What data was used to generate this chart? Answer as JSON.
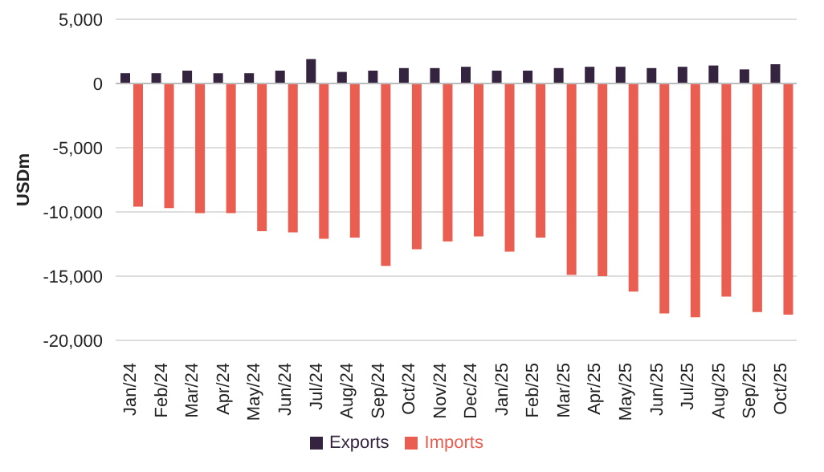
{
  "chart_data": {
    "type": "bar",
    "ylabel": "USDm",
    "categories": [
      "Jan/24",
      "Feb/24",
      "Mar/24",
      "Apr/24",
      "May/24",
      "Jun/24",
      "Jul/24",
      "Aug/24",
      "Sep/24",
      "Oct/24",
      "Nov/24",
      "Dec/24",
      "Jan/25",
      "Feb/25",
      "Mar/25",
      "Apr/25",
      "May/25",
      "Jun/25",
      "Jul/25",
      "Aug/25",
      "Sep/25",
      "Oct/25"
    ],
    "series": [
      {
        "name": "Exports",
        "color": "#35243f",
        "values": [
          800,
          800,
          1000,
          800,
          800,
          1000,
          1900,
          900,
          1000,
          1200,
          1200,
          1300,
          1000,
          1000,
          1200,
          1300,
          1300,
          1200,
          1300,
          1400,
          1100,
          1500
        ]
      },
      {
        "name": "Imports",
        "color": "#e95e50",
        "values": [
          -9600,
          -9700,
          -10100,
          -10100,
          -11500,
          -11600,
          -12100,
          -12000,
          -14200,
          -12900,
          -12300,
          -11900,
          -13100,
          -12000,
          -14900,
          -15000,
          -16200,
          -17900,
          -18200,
          -16600,
          -17800,
          -18000
        ]
      }
    ],
    "ylim": [
      -20000,
      5000
    ],
    "yticks": [
      {
        "value": -20000,
        "label": "-20,000"
      },
      {
        "value": -15000,
        "label": "-15,000"
      },
      {
        "value": -10000,
        "label": "-10,000"
      },
      {
        "value": -5000,
        "label": "-5,000"
      },
      0,
      {
        "value": 5000,
        "label": "5,000"
      }
    ],
    "grid": "y",
    "legend": "bottom"
  }
}
